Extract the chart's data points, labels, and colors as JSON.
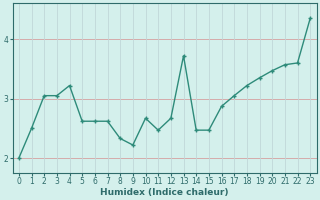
{
  "x": [
    0,
    1,
    2,
    3,
    4,
    5,
    6,
    7,
    8,
    9,
    10,
    11,
    12,
    13,
    14,
    15,
    16,
    17,
    18,
    19,
    20,
    21,
    22,
    23
  ],
  "y": [
    2.0,
    2.5,
    3.05,
    3.05,
    3.22,
    2.62,
    2.62,
    2.62,
    2.33,
    2.22,
    2.67,
    2.47,
    2.67,
    3.72,
    2.47,
    2.47,
    2.87,
    3.05,
    3.22,
    3.35,
    3.47,
    3.57,
    3.6,
    4.35
  ],
  "line_color": "#2e8b7a",
  "marker": "+",
  "markersize": 3.5,
  "markeredgewidth": 1.0,
  "linewidth": 1.0,
  "xlabel": "Humidex (Indice chaleur)",
  "xlim": [
    -0.5,
    23.5
  ],
  "ylim": [
    1.75,
    4.6
  ],
  "yticks": [
    2,
    3,
    4
  ],
  "xticks": [
    0,
    1,
    2,
    3,
    4,
    5,
    6,
    7,
    8,
    9,
    10,
    11,
    12,
    13,
    14,
    15,
    16,
    17,
    18,
    19,
    20,
    21,
    22,
    23
  ],
  "bg_color": "#d4f0ec",
  "grid_color_h": "#d4a0a0",
  "grid_color_v": "#c0d8d8",
  "tick_fontsize": 5.5,
  "label_fontsize": 6.5
}
